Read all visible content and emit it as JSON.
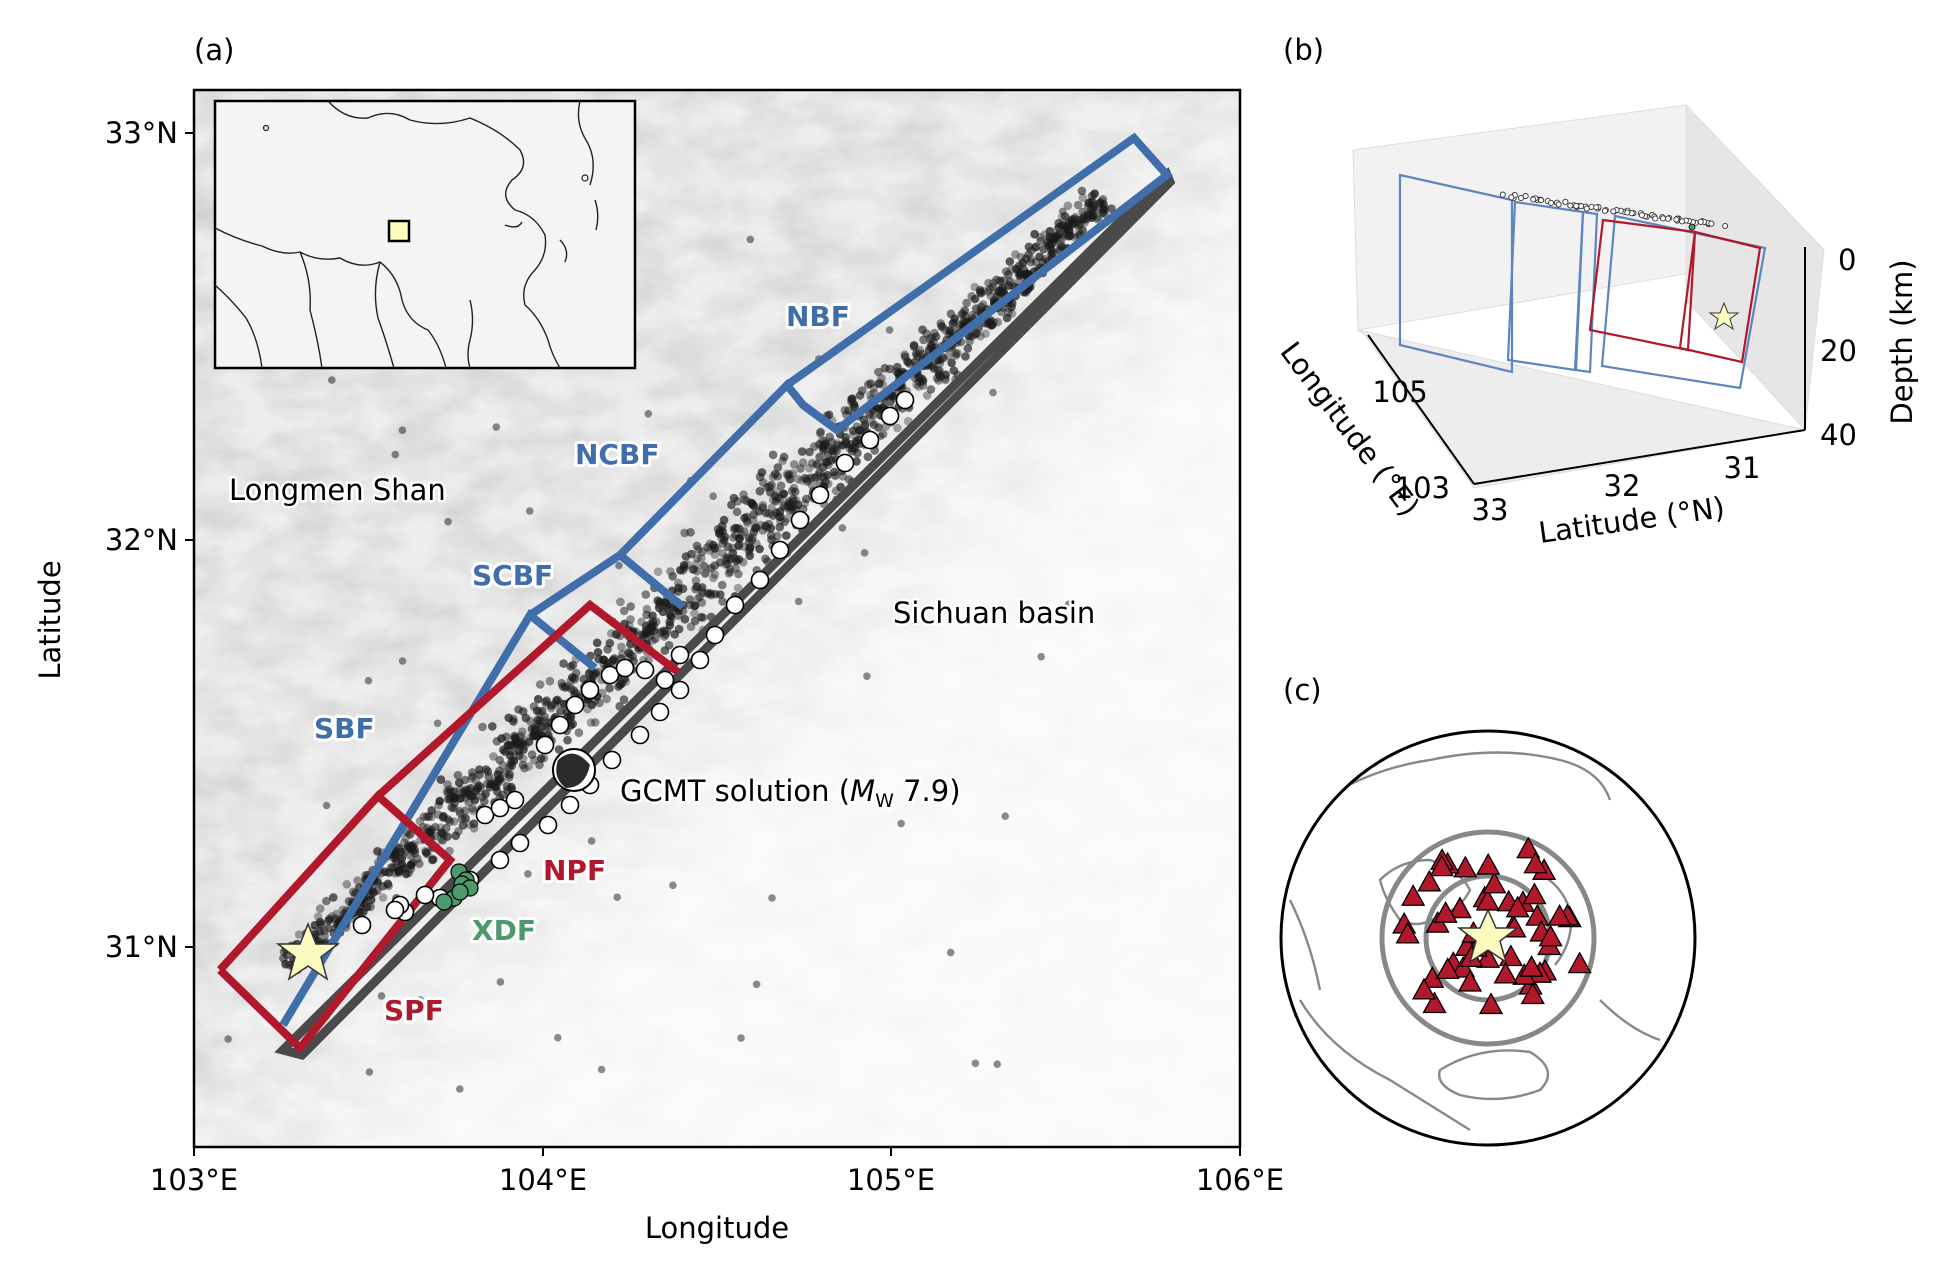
{
  "panels": {
    "a": {
      "label": "(a)",
      "x_ticks": [
        "103°E",
        "104°E",
        "105°E",
        "106°E"
      ],
      "y_ticks": [
        "31°N",
        "32°N",
        "33°N"
      ],
      "xlabel": "Longitude",
      "ylabel": "Latitude",
      "regions": [
        "Longmen Shan",
        "Sichuan basin"
      ],
      "faults": {
        "nbf": {
          "label": "NBF",
          "color": "#3f6eab"
        },
        "ncbf": {
          "label": "NCBF",
          "color": "#3f6eab"
        },
        "scbf": {
          "label": "SCBF",
          "color": "#3f6eab"
        },
        "sbf": {
          "label": "SBF",
          "color": "#3f6eab"
        },
        "npf": {
          "label": "NPF",
          "color": "#b2182b"
        },
        "spf": {
          "label": "SPF",
          "color": "#b2182b"
        },
        "xdf": {
          "label": "XDF",
          "color": "#4c9a6a"
        }
      },
      "gcmt": {
        "prefix": "GCMT solution (",
        "m": "M",
        "sub": "W",
        "suffix": " 7.9)"
      }
    },
    "b": {
      "label": "(b)",
      "xlabel": "Latitude (°N)",
      "ylabel": "Longitude (°E)",
      "zlabel": "Depth (km)",
      "lat_ticks": [
        "33",
        "32",
        "31"
      ],
      "lon_ticks": [
        "105",
        "103"
      ],
      "depth_ticks": [
        "0",
        "20",
        "40"
      ]
    },
    "c": {
      "label": "(c)"
    }
  },
  "colors": {
    "blue": "#3f6eab",
    "red": "#b2182b",
    "green": "#4c9a6a",
    "star": "#fbfbbf",
    "event": "#1a1a1a"
  }
}
